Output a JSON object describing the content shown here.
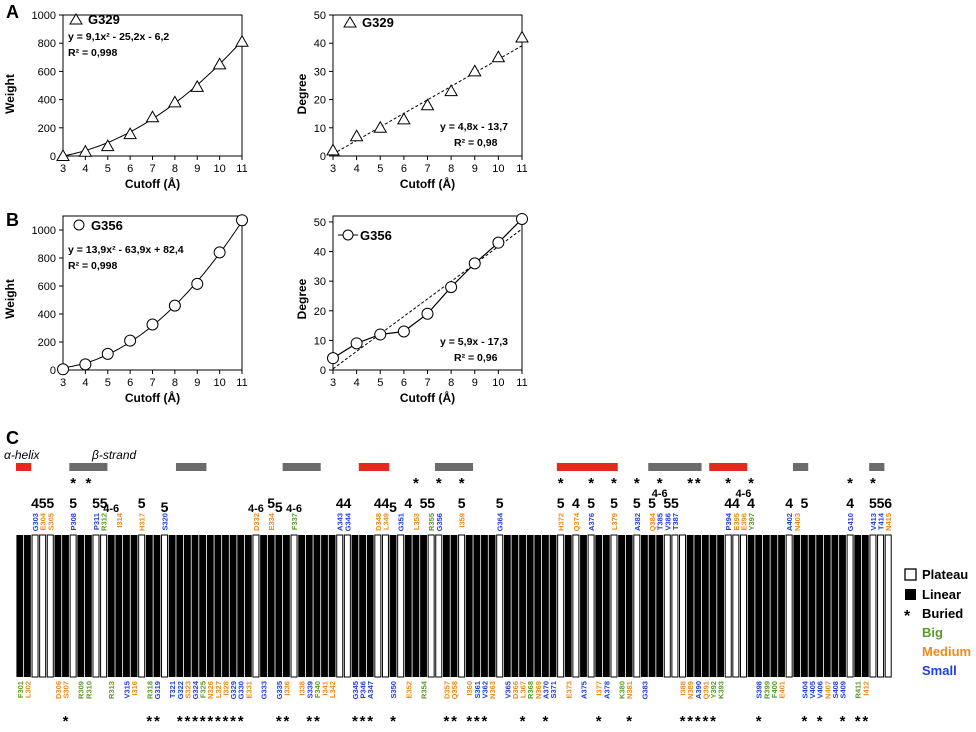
{
  "panel_labels": {
    "A": "A",
    "B": "B",
    "C": "C"
  },
  "chart_data": [
    {
      "type": "scatter",
      "id": "a-weight",
      "marker": "triangle",
      "fit": "solid",
      "legend": "G329",
      "equation": "y = 9,1x² - 25,2x - 6,2",
      "r2": "R² = 0,998",
      "xlabel": "Cutoff (Å)",
      "ylabel": "Weight",
      "xlim": [
        3,
        11
      ],
      "ylim": [
        0,
        1000
      ],
      "xticks": [
        "3",
        "4",
        "5",
        "6",
        "7",
        "8",
        "9",
        "10",
        "11"
      ],
      "yticks": [
        "0",
        "200",
        "400",
        "600",
        "800",
        "1000"
      ],
      "x": [
        3,
        4,
        5,
        6,
        7,
        8,
        9,
        10,
        11
      ],
      "y": [
        0,
        30,
        70,
        155,
        275,
        380,
        490,
        650,
        810
      ],
      "fit_coeffs": [
        9.1,
        -25.2,
        -6.2
      ]
    },
    {
      "type": "scatter",
      "id": "a-degree",
      "marker": "triangle",
      "fit": "dashed",
      "legend": "G329",
      "equation": "y = 4,8x - 13,7",
      "r2": "R² = 0,98",
      "xlabel": "Cutoff (Å)",
      "ylabel": "Degree",
      "xlim": [
        3,
        11
      ],
      "ylim": [
        0,
        50
      ],
      "xticks": [
        "3",
        "4",
        "5",
        "6",
        "7",
        "8",
        "9",
        "10",
        "11"
      ],
      "yticks": [
        "0",
        "10",
        "20",
        "30",
        "40",
        "50"
      ],
      "x": [
        3,
        4,
        5,
        6,
        7,
        8,
        9,
        10,
        11
      ],
      "y": [
        2,
        7,
        10,
        13,
        18,
        23,
        30,
        35,
        42
      ],
      "fit_coeffs": [
        0,
        4.8,
        -13.7
      ]
    },
    {
      "type": "scatter",
      "id": "b-weight",
      "marker": "circle",
      "fit": "solid",
      "legend": "G356",
      "equation": "y = 13,9x² - 63,9x + 82,4",
      "r2": "R² = 0,998",
      "xlabel": "Cutoff (Å)",
      "ylabel": "Weight",
      "xlim": [
        3,
        11
      ],
      "ylim": [
        0,
        1100
      ],
      "xticks": [
        "3",
        "4",
        "5",
        "6",
        "7",
        "8",
        "9",
        "10",
        "11"
      ],
      "yticks": [
        "0",
        "200",
        "400",
        "600",
        "800",
        "1000"
      ],
      "x": [
        3,
        4,
        5,
        6,
        7,
        8,
        9,
        10,
        11
      ],
      "y": [
        5,
        40,
        115,
        210,
        325,
        460,
        615,
        840,
        1070
      ],
      "fit_coeffs": [
        13.9,
        -63.9,
        82.4
      ]
    },
    {
      "type": "line",
      "id": "b-degree",
      "marker": "circle",
      "fit": "dashed",
      "legend": "G356",
      "equation": "y = 5,9x - 17,3",
      "r2": "R² = 0,96",
      "xlabel": "Cutoff (Å)",
      "ylabel": "Degree",
      "xlim": [
        3,
        11
      ],
      "ylim": [
        0,
        52
      ],
      "xticks": [
        "3",
        "4",
        "5",
        "6",
        "7",
        "8",
        "9",
        "10",
        "11"
      ],
      "yticks": [
        "0",
        "10",
        "20",
        "30",
        "40",
        "50"
      ],
      "x": [
        3,
        4,
        5,
        6,
        7,
        8,
        9,
        10,
        11
      ],
      "y": [
        4,
        9,
        12,
        13,
        19,
        28,
        36,
        43,
        51
      ],
      "fit_coeffs": [
        0,
        5.9,
        -17.3
      ]
    }
  ],
  "panel_c": {
    "helix_label": "α-helix",
    "strand_label": "β-strand",
    "helix_color": "#e32a1c",
    "strand_color": "#6b6b6b",
    "colors": {
      "big": "#5a9a28",
      "medium": "#ee8a1a",
      "small": "#1d3fe0"
    },
    "legend": {
      "plateau": "Plateau",
      "linear": "Linear",
      "buried": "Buried",
      "big": "Big",
      "medium": "Medium",
      "small": "Small"
    },
    "first_residue": 301,
    "last_residue": 415,
    "secondary_structure": [
      {
        "type": "helix",
        "start": 301,
        "end": 302
      },
      {
        "type": "strand",
        "start": 308,
        "end": 312
      },
      {
        "type": "strand",
        "start": 322,
        "end": 325
      },
      {
        "type": "strand",
        "start": 336,
        "end": 340
      },
      {
        "type": "helix",
        "start": 346,
        "end": 349
      },
      {
        "type": "strand",
        "start": 356,
        "end": 360
      },
      {
        "type": "helix",
        "start": 372,
        "end": 379
      },
      {
        "type": "strand",
        "start": 384,
        "end": 390
      },
      {
        "type": "helix",
        "start": 392,
        "end": 396
      },
      {
        "type": "strand",
        "start": 403,
        "end": 404
      },
      {
        "type": "strand",
        "start": 413,
        "end": 414
      }
    ],
    "plateau": [
      303,
      304,
      305,
      308,
      311,
      312,
      317,
      320,
      332,
      337,
      343,
      344,
      348,
      349,
      351,
      355,
      356,
      359,
      364,
      372,
      374,
      376,
      379,
      382,
      386,
      387,
      388,
      394,
      395,
      396,
      402,
      410,
      413,
      414,
      415
    ],
    "top_stars": [
      308,
      310,
      353,
      356,
      359,
      372,
      376,
      379,
      382,
      385,
      389,
      390,
      394,
      397,
      410,
      413
    ],
    "bottom_stars": [
      307,
      318,
      319,
      322,
      323,
      324,
      325,
      326,
      327,
      328,
      329,
      330,
      335,
      336,
      339,
      340,
      345,
      346,
      347,
      350,
      357,
      358,
      360,
      361,
      362,
      367,
      370,
      377,
      381,
      388,
      389,
      390,
      391,
      392,
      398,
      404,
      406,
      409,
      411,
      412
    ],
    "numbers": [
      {
        "text": "4",
        "res": 303,
        "row": 0
      },
      {
        "text": "5",
        "res": 304,
        "row": 0
      },
      {
        "text": "5",
        "res": 305,
        "row": 0
      },
      {
        "text": "5",
        "res": 308,
        "row": 0
      },
      {
        "text": "5",
        "res": 311,
        "row": 0
      },
      {
        "text": "5",
        "res": 312,
        "row": 0
      },
      {
        "text": "4-6",
        "res": 313,
        "row": 1
      },
      {
        "text": "5",
        "res": 317,
        "row": 0
      },
      {
        "text": "5",
        "res": 320,
        "row": 1
      },
      {
        "text": "4-6",
        "res": 332,
        "row": 1
      },
      {
        "text": "5",
        "res": 334,
        "row": 0
      },
      {
        "text": "5",
        "res": 335,
        "row": 1
      },
      {
        "text": "4-6",
        "res": 337,
        "row": 1
      },
      {
        "text": "4",
        "res": 343,
        "row": 0
      },
      {
        "text": "4",
        "res": 344,
        "row": 0
      },
      {
        "text": "4",
        "res": 348,
        "row": 0
      },
      {
        "text": "4",
        "res": 349,
        "row": 0
      },
      {
        "text": "5",
        "res": 350,
        "row": 1
      },
      {
        "text": "4",
        "res": 352,
        "row": 0
      },
      {
        "text": "5",
        "res": 354,
        "row": 0
      },
      {
        "text": "5",
        "res": 355,
        "row": 0
      },
      {
        "text": "5",
        "res": 359,
        "row": 0
      },
      {
        "text": "5",
        "res": 364,
        "row": 0
      },
      {
        "text": "5",
        "res": 372,
        "row": 0
      },
      {
        "text": "4",
        "res": 374,
        "row": 0
      },
      {
        "text": "5",
        "res": 376,
        "row": 0
      },
      {
        "text": "5",
        "res": 379,
        "row": 0
      },
      {
        "text": "5",
        "res": 382,
        "row": 0
      },
      {
        "text": "5",
        "res": 384,
        "row": 0
      },
      {
        "text": "4-6",
        "res": 385,
        "row": -1
      },
      {
        "text": "5",
        "res": 386,
        "row": 0
      },
      {
        "text": "5",
        "res": 387,
        "row": 0
      },
      {
        "text": "4",
        "res": 394,
        "row": 0
      },
      {
        "text": "4",
        "res": 395,
        "row": 0
      },
      {
        "text": "4-6",
        "res": 396,
        "row": -1
      },
      {
        "text": "4",
        "res": 397,
        "row": 0
      },
      {
        "text": "4",
        "res": 402,
        "row": 0
      },
      {
        "text": "5",
        "res": 404,
        "row": 0
      },
      {
        "text": "4",
        "res": 410,
        "row": 0
      },
      {
        "text": "5",
        "res": 413,
        "row": 0
      },
      {
        "text": "5",
        "res": 414,
        "row": 0
      },
      {
        "text": "6",
        "res": 415,
        "row": 0
      }
    ],
    "top_labels": [
      {
        "text": "G303",
        "c": "small"
      },
      {
        "text": "E304",
        "c": "medium"
      },
      {
        "text": "S305",
        "c": "medium"
      },
      {
        "text": "P308",
        "c": "small"
      },
      {
        "text": "P311",
        "c": "small"
      },
      {
        "text": "R312",
        "c": "big"
      },
      {
        "text": "I314",
        "c": "medium"
      },
      {
        "text": "H317",
        "c": "medium"
      },
      {
        "text": "S320",
        "c": "small"
      },
      {
        "text": "D332",
        "c": "medium"
      },
      {
        "text": "E334",
        "c": "medium"
      },
      {
        "text": "F337",
        "c": "big"
      },
      {
        "text": "A343",
        "c": "small"
      },
      {
        "text": "G344",
        "c": "small"
      },
      {
        "text": "D348",
        "c": "medium"
      },
      {
        "text": "L349",
        "c": "medium"
      },
      {
        "text": "G351",
        "c": "small"
      },
      {
        "text": "L353",
        "c": "medium"
      },
      {
        "text": "R355",
        "c": "big"
      },
      {
        "text": "G356",
        "c": "small"
      },
      {
        "text": "I359",
        "c": "medium"
      },
      {
        "text": "G364",
        "c": "small"
      },
      {
        "text": "H372",
        "c": "medium"
      },
      {
        "text": "Q374",
        "c": "medium"
      },
      {
        "text": "A376",
        "c": "small"
      },
      {
        "text": "L379",
        "c": "medium"
      },
      {
        "text": "A382",
        "c": "small"
      },
      {
        "text": "Q384",
        "c": "medium"
      },
      {
        "text": "T385",
        "c": "small"
      },
      {
        "text": "V386",
        "c": "small"
      },
      {
        "text": "T387",
        "c": "small"
      },
      {
        "text": "P394",
        "c": "small"
      },
      {
        "text": "E395",
        "c": "medium"
      },
      {
        "text": "E396",
        "c": "medium"
      },
      {
        "text": "Y397",
        "c": "big"
      },
      {
        "text": "A402",
        "c": "small"
      },
      {
        "text": "N403",
        "c": "medium"
      },
      {
        "text": "G410",
        "c": "small"
      },
      {
        "text": "V413",
        "c": "small"
      },
      {
        "text": "T414",
        "c": "small"
      },
      {
        "text": "N415",
        "c": "medium"
      }
    ],
    "bottom_labels": [
      {
        "text": "F301",
        "c": "big"
      },
      {
        "text": "L302",
        "c": "medium"
      },
      {
        "text": "D306",
        "c": "medium"
      },
      {
        "text": "S307",
        "c": "medium"
      },
      {
        "text": "R309",
        "c": "big"
      },
      {
        "text": "R310",
        "c": "big"
      },
      {
        "text": "R313",
        "c": "big"
      },
      {
        "text": "V315",
        "c": "small"
      },
      {
        "text": "I316",
        "c": "medium"
      },
      {
        "text": "R318",
        "c": "big"
      },
      {
        "text": "G319",
        "c": "small"
      },
      {
        "text": "T321",
        "c": "small"
      },
      {
        "text": "G322",
        "c": "small"
      },
      {
        "text": "S323",
        "c": "medium"
      },
      {
        "text": "G324",
        "c": "small"
      },
      {
        "text": "F325",
        "c": "big"
      },
      {
        "text": "N326",
        "c": "medium"
      },
      {
        "text": "L327",
        "c": "medium"
      },
      {
        "text": "I328",
        "c": "medium"
      },
      {
        "text": "G329",
        "c": "small"
      },
      {
        "text": "G330",
        "c": "small"
      },
      {
        "text": "E331",
        "c": "medium"
      },
      {
        "text": "G333",
        "c": "small"
      },
      {
        "text": "G335",
        "c": "small"
      },
      {
        "text": "I336",
        "c": "medium"
      },
      {
        "text": "I338",
        "c": "medium"
      },
      {
        "text": "S339",
        "c": "small"
      },
      {
        "text": "F340",
        "c": "big"
      },
      {
        "text": "I341",
        "c": "medium"
      },
      {
        "text": "L342",
        "c": "medium"
      },
      {
        "text": "G345",
        "c": "small"
      },
      {
        "text": "P346",
        "c": "small"
      },
      {
        "text": "A347",
        "c": "small"
      },
      {
        "text": "S350",
        "c": "small"
      },
      {
        "text": "E352",
        "c": "medium"
      },
      {
        "text": "R354",
        "c": "big"
      },
      {
        "text": "D357",
        "c": "medium"
      },
      {
        "text": "Q358",
        "c": "medium"
      },
      {
        "text": "I360",
        "c": "medium"
      },
      {
        "text": "S361",
        "c": "small"
      },
      {
        "text": "V362",
        "c": "small"
      },
      {
        "text": "N363",
        "c": "medium"
      },
      {
        "text": "V365",
        "c": "small"
      },
      {
        "text": "D366",
        "c": "medium"
      },
      {
        "text": "L367",
        "c": "medium"
      },
      {
        "text": "R368",
        "c": "big"
      },
      {
        "text": "N369",
        "c": "medium"
      },
      {
        "text": "A370",
        "c": "small"
      },
      {
        "text": "S371",
        "c": "small"
      },
      {
        "text": "E373",
        "c": "medium"
      },
      {
        "text": "A375",
        "c": "small"
      },
      {
        "text": "I377",
        "c": "medium"
      },
      {
        "text": "A378",
        "c": "small"
      },
      {
        "text": "K380",
        "c": "big"
      },
      {
        "text": "N381",
        "c": "medium"
      },
      {
        "text": "G383",
        "c": "small"
      },
      {
        "text": "I388",
        "c": "medium"
      },
      {
        "text": "N389",
        "c": "medium"
      },
      {
        "text": "A390",
        "c": "small"
      },
      {
        "text": "Q391",
        "c": "medium"
      },
      {
        "text": "Y392",
        "c": "big"
      },
      {
        "text": "K393",
        "c": "big"
      },
      {
        "text": "S398",
        "c": "small"
      },
      {
        "text": "R399",
        "c": "big"
      },
      {
        "text": "F400",
        "c": "big"
      },
      {
        "text": "E401",
        "c": "medium"
      },
      {
        "text": "S404",
        "c": "small"
      },
      {
        "text": "V405",
        "c": "small"
      },
      {
        "text": "V406",
        "c": "small"
      },
      {
        "text": "N407",
        "c": "medium"
      },
      {
        "text": "S408",
        "c": "small"
      },
      {
        "text": "S409",
        "c": "small"
      },
      {
        "text": "R411",
        "c": "big"
      },
      {
        "text": "I412",
        "c": "medium"
      }
    ]
  }
}
